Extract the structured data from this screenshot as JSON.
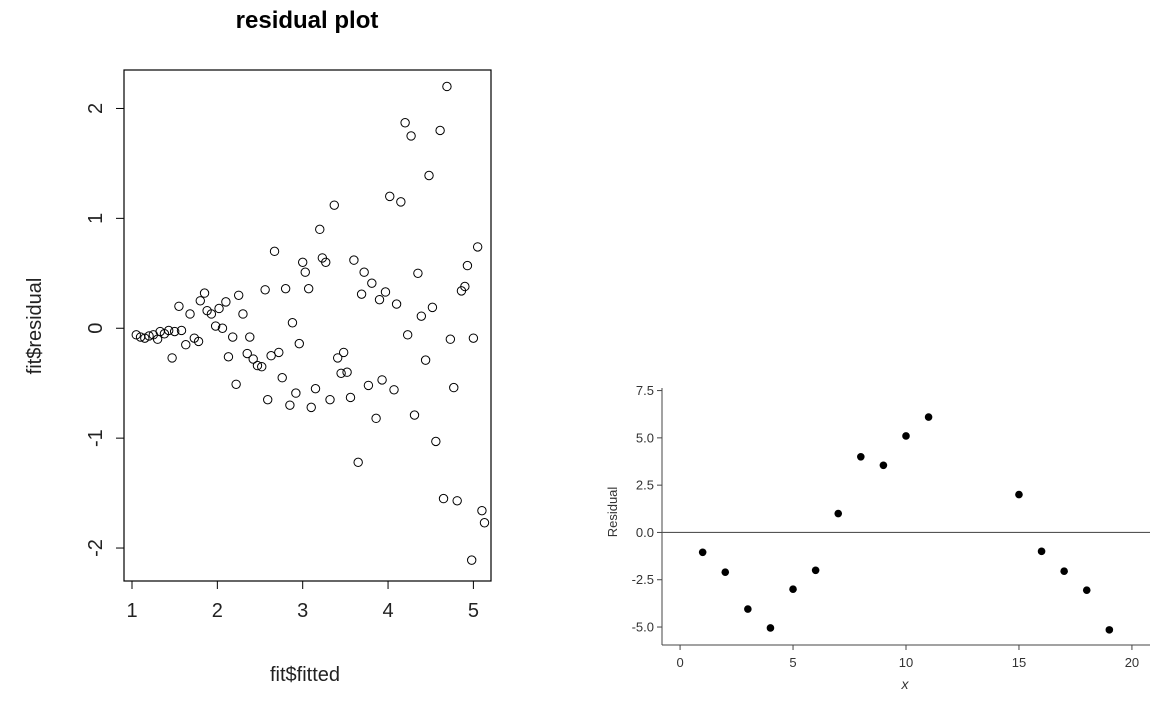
{
  "chart_data": [
    {
      "type": "scatter",
      "title": "residual plot",
      "xlabel": "fit$fitted",
      "ylabel": "fit$residual",
      "xlim": [
        1,
        5.3
      ],
      "ylim": [
        -2.3,
        2.35
      ],
      "xticks": [
        1,
        2,
        3,
        4,
        5
      ],
      "xtick_labels": [
        "1",
        "2",
        "3",
        "4",
        "5"
      ],
      "yticks": [
        -2,
        -1,
        0,
        1,
        2
      ],
      "ytick_labels": [
        "-2",
        "-1",
        "0",
        "1",
        "2"
      ],
      "marker": "open-circle",
      "grid": false,
      "points": [
        [
          1.05,
          -0.06
        ],
        [
          1.1,
          -0.08
        ],
        [
          1.15,
          -0.09
        ],
        [
          1.2,
          -0.07
        ],
        [
          1.25,
          -0.06
        ],
        [
          1.3,
          -0.1
        ],
        [
          1.33,
          -0.03
        ],
        [
          1.38,
          -0.05
        ],
        [
          1.43,
          -0.02
        ],
        [
          1.47,
          -0.27
        ],
        [
          1.5,
          -0.03
        ],
        [
          1.55,
          0.2
        ],
        [
          1.58,
          -0.02
        ],
        [
          1.63,
          -0.15
        ],
        [
          1.68,
          0.13
        ],
        [
          1.73,
          -0.09
        ],
        [
          1.78,
          -0.12
        ],
        [
          1.8,
          0.25
        ],
        [
          1.85,
          0.32
        ],
        [
          1.88,
          0.16
        ],
        [
          1.93,
          0.13
        ],
        [
          1.98,
          0.02
        ],
        [
          2.02,
          0.18
        ],
        [
          2.06,
          0.0
        ],
        [
          2.1,
          0.24
        ],
        [
          2.13,
          -0.26
        ],
        [
          2.18,
          -0.08
        ],
        [
          2.22,
          -0.51
        ],
        [
          2.25,
          0.3
        ],
        [
          2.3,
          0.13
        ],
        [
          2.35,
          -0.23
        ],
        [
          2.38,
          -0.08
        ],
        [
          2.42,
          -0.28
        ],
        [
          2.47,
          -0.34
        ],
        [
          2.52,
          -0.35
        ],
        [
          2.56,
          0.35
        ],
        [
          2.59,
          -0.65
        ],
        [
          2.63,
          -0.25
        ],
        [
          2.67,
          0.7
        ],
        [
          2.72,
          -0.22
        ],
        [
          2.76,
          -0.45
        ],
        [
          2.8,
          0.36
        ],
        [
          2.85,
          -0.7
        ],
        [
          2.88,
          0.05
        ],
        [
          2.92,
          -0.59
        ],
        [
          2.96,
          -0.14
        ],
        [
          3.0,
          0.6
        ],
        [
          3.03,
          0.51
        ],
        [
          3.07,
          0.36
        ],
        [
          3.1,
          -0.72
        ],
        [
          3.15,
          -0.55
        ],
        [
          3.2,
          0.9
        ],
        [
          3.23,
          0.64
        ],
        [
          3.27,
          0.6
        ],
        [
          3.32,
          -0.65
        ],
        [
          3.37,
          1.12
        ],
        [
          3.41,
          -0.27
        ],
        [
          3.45,
          -0.41
        ],
        [
          3.48,
          -0.22
        ],
        [
          3.52,
          -0.4
        ],
        [
          3.56,
          -0.63
        ],
        [
          3.6,
          0.62
        ],
        [
          3.65,
          -1.22
        ],
        [
          3.69,
          0.31
        ],
        [
          3.72,
          0.51
        ],
        [
          3.77,
          -0.52
        ],
        [
          3.81,
          0.41
        ],
        [
          3.86,
          -0.82
        ],
        [
          3.9,
          0.26
        ],
        [
          3.93,
          -0.47
        ],
        [
          3.97,
          0.33
        ],
        [
          4.02,
          1.2
        ],
        [
          4.07,
          -0.56
        ],
        [
          4.1,
          0.22
        ],
        [
          4.15,
          1.15
        ],
        [
          4.2,
          1.87
        ],
        [
          4.23,
          -0.06
        ],
        [
          4.27,
          1.75
        ],
        [
          4.31,
          -0.79
        ],
        [
          4.35,
          0.5
        ],
        [
          4.39,
          0.11
        ],
        [
          4.44,
          -0.29
        ],
        [
          4.48,
          1.39
        ],
        [
          4.52,
          0.19
        ],
        [
          4.56,
          -1.03
        ],
        [
          4.61,
          1.8
        ],
        [
          4.65,
          -1.55
        ],
        [
          4.69,
          2.2
        ],
        [
          4.73,
          -0.1
        ],
        [
          4.77,
          -0.54
        ],
        [
          4.81,
          -1.57
        ],
        [
          4.86,
          0.34
        ],
        [
          4.9,
          0.38
        ],
        [
          4.93,
          0.57
        ],
        [
          4.98,
          -2.11
        ],
        [
          5.0,
          -0.09
        ],
        [
          5.05,
          0.74
        ],
        [
          5.1,
          -1.66
        ],
        [
          5.13,
          -1.77
        ]
      ]
    },
    {
      "type": "scatter",
      "title": "",
      "xlabel": "x",
      "ylabel": "Residual",
      "xlim": [
        -0.8,
        20.8
      ],
      "ylim": [
        -5.95,
        7.9
      ],
      "xticks": [
        0,
        5,
        10,
        15,
        20
      ],
      "xtick_labels": [
        "0",
        "5",
        "10",
        "15",
        "20"
      ],
      "yticks": [
        7.5,
        5.0,
        2.5,
        0.0,
        -2.5,
        -5.0
      ],
      "ytick_labels": [
        "7.5",
        "5.0",
        "2.5",
        "0.0",
        "-2.5",
        "-5.0"
      ],
      "reference_line_y": 0,
      "marker": "filled-circle",
      "grid": false,
      "points": [
        [
          1,
          -1.05
        ],
        [
          2,
          -2.1
        ],
        [
          3,
          -4.05
        ],
        [
          4,
          -5.05
        ],
        [
          5,
          -3.0
        ],
        [
          6,
          -2.0
        ],
        [
          7,
          1.0
        ],
        [
          8,
          4.0
        ],
        [
          9,
          3.55
        ],
        [
          10,
          5.1
        ],
        [
          11,
          6.1
        ],
        [
          15,
          2.0
        ],
        [
          16,
          -1.0
        ],
        [
          17,
          -2.05
        ],
        [
          18,
          -3.05
        ],
        [
          19,
          -5.15
        ]
      ]
    }
  ]
}
